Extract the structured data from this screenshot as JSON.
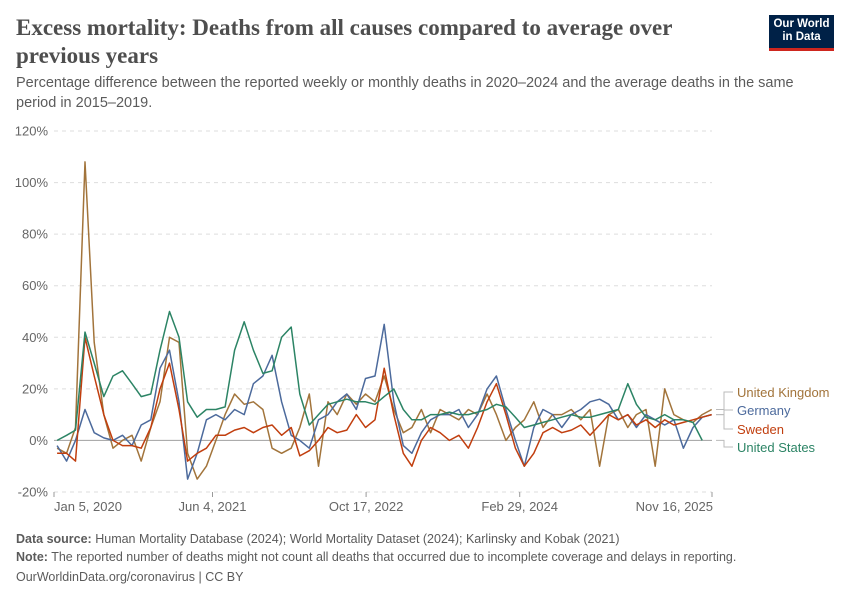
{
  "header": {
    "title": "Excess mortality: Deaths from all causes compared to average over previous years",
    "subtitle": "Percentage difference between the reported weekly or monthly deaths in 2020–2024 and the average deaths in the same period in 2015–2019.",
    "logo_text": "Our World in Data"
  },
  "footer": {
    "source_label": "Data source:",
    "source": "Human Mortality Database (2024); World Mortality Dataset (2024); Karlinsky and Kobak (2021)",
    "note_label": "Note:",
    "note": "The reported number of deaths might not count all deaths that occurred due to incomplete coverage and delays in reporting.",
    "url": "OurWorldinData.org/coronavirus | CC BY"
  },
  "chart_data": {
    "type": "line",
    "title": "Excess mortality: Deaths from all causes compared to average over previous years",
    "ylabel": "",
    "xlabel": "",
    "ylim": [
      -20,
      120
    ],
    "xlim": [
      "2020-01-05",
      "2025-11-16"
    ],
    "y_ticks": [
      "-20%",
      "0%",
      "20%",
      "40%",
      "60%",
      "80%",
      "100%",
      "120%"
    ],
    "y_tick_values": [
      -20,
      0,
      20,
      40,
      60,
      80,
      100,
      120
    ],
    "x_ticks": [
      "Jan 5, 2020",
      "Jun 4, 2021",
      "Oct 17, 2022",
      "Feb 29, 2024",
      "Nov 16, 2025"
    ],
    "x_tick_dates": [
      "2020-01-05",
      "2021-06-04",
      "2022-10-17",
      "2024-02-29",
      "2025-11-16"
    ],
    "grid": "horizontal dashed",
    "legend_placement": "right (line-end labels)",
    "x": [
      "2020-01",
      "2020-02",
      "2020-03",
      "2020-04",
      "2020-05",
      "2020-06",
      "2020-07",
      "2020-08",
      "2020-09",
      "2020-10",
      "2020-11",
      "2020-12",
      "2021-01",
      "2021-02",
      "2021-03",
      "2021-04",
      "2021-05",
      "2021-06",
      "2021-07",
      "2021-08",
      "2021-09",
      "2021-10",
      "2021-11",
      "2021-12",
      "2022-01",
      "2022-02",
      "2022-03",
      "2022-04",
      "2022-05",
      "2022-06",
      "2022-07",
      "2022-08",
      "2022-09",
      "2022-10",
      "2022-11",
      "2022-12",
      "2023-01",
      "2023-02",
      "2023-03",
      "2023-04",
      "2023-05",
      "2023-06",
      "2023-07",
      "2023-08",
      "2023-09",
      "2023-10",
      "2023-11",
      "2023-12",
      "2024-01",
      "2024-02",
      "2024-03",
      "2024-04",
      "2024-05",
      "2024-06",
      "2024-07",
      "2024-08",
      "2024-09",
      "2024-10",
      "2024-11",
      "2024-12",
      "2025-01",
      "2025-02",
      "2025-03",
      "2025-04",
      "2025-05",
      "2025-06",
      "2025-07",
      "2025-08",
      "2025-09",
      "2025-10",
      "2025-11"
    ],
    "series": [
      {
        "name": "United Kingdom",
        "color": "#a2743b",
        "values": [
          -3,
          -5,
          5,
          108,
          38,
          10,
          -3,
          0,
          2,
          -8,
          5,
          15,
          40,
          38,
          -5,
          -15,
          -10,
          0,
          10,
          18,
          14,
          15,
          12,
          -3,
          -5,
          -3,
          5,
          18,
          -10,
          15,
          10,
          18,
          14,
          18,
          15,
          25,
          12,
          3,
          5,
          12,
          3,
          12,
          10,
          8,
          12,
          10,
          18,
          10,
          0,
          5,
          8,
          15,
          5,
          10,
          10,
          12,
          8,
          12,
          -10,
          10,
          12,
          5,
          10,
          12,
          -10,
          20,
          10,
          8,
          7,
          10,
          12
        ]
      },
      {
        "name": "Germany",
        "color": "#4c6a9c",
        "values": [
          -2,
          -8,
          0,
          12,
          3,
          1,
          0,
          2,
          -2,
          6,
          8,
          28,
          35,
          15,
          -15,
          -5,
          8,
          10,
          8,
          12,
          10,
          22,
          25,
          33,
          15,
          2,
          0,
          -3,
          8,
          10,
          15,
          18,
          12,
          24,
          25,
          45,
          15,
          -2,
          -5,
          3,
          8,
          10,
          10,
          12,
          5,
          10,
          20,
          25,
          12,
          0,
          -10,
          5,
          12,
          10,
          5,
          10,
          12,
          15,
          16,
          14,
          8,
          10,
          5,
          10,
          8,
          6,
          8,
          -3,
          5,
          9,
          10
        ]
      },
      {
        "name": "Sweden",
        "color": "#c13e0e",
        "values": [
          -5,
          -5,
          -8,
          40,
          25,
          10,
          0,
          -2,
          -2,
          -3,
          5,
          20,
          30,
          12,
          -8,
          -5,
          -3,
          2,
          2,
          4,
          5,
          3,
          5,
          6,
          2,
          5,
          -6,
          -4,
          0,
          5,
          3,
          4,
          10,
          5,
          8,
          28,
          10,
          -5,
          -10,
          0,
          5,
          3,
          0,
          2,
          -3,
          5,
          15,
          22,
          10,
          -3,
          -10,
          -5,
          3,
          5,
          3,
          4,
          6,
          2,
          6,
          10,
          8,
          10,
          6,
          8,
          5,
          8,
          6,
          7,
          8,
          9,
          10
        ]
      },
      {
        "name": "United States",
        "color": "#2c8465",
        "values": [
          0,
          2,
          4,
          42,
          30,
          17,
          25,
          27,
          22,
          17,
          18,
          35,
          50,
          40,
          15,
          9,
          12,
          12,
          13,
          35,
          46,
          35,
          26,
          27,
          40,
          44,
          18,
          6,
          10,
          14,
          15,
          16,
          15,
          15,
          14,
          17,
          20,
          12,
          8,
          8,
          10,
          10,
          11,
          10,
          10,
          11,
          12,
          14,
          13,
          9,
          5,
          6,
          7,
          8,
          9,
          10,
          9,
          9,
          10,
          11,
          12,
          22,
          14,
          9,
          8,
          10,
          8,
          8,
          7,
          0,
          null
        ]
      }
    ]
  }
}
